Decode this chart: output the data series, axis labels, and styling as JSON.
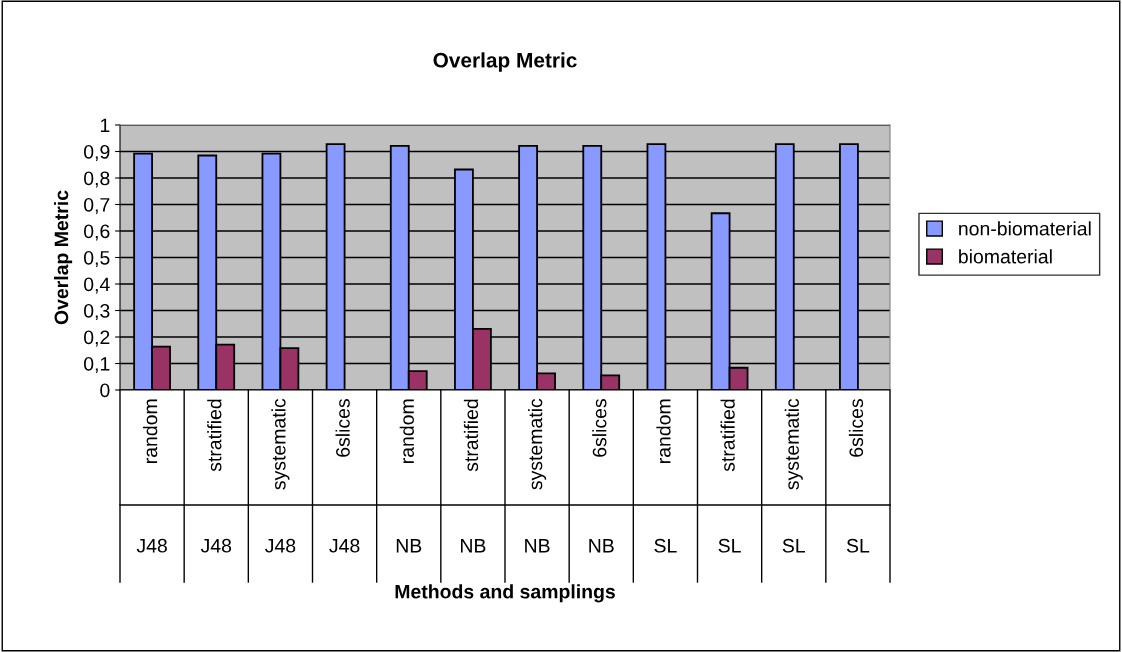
{
  "chart_data": {
    "type": "bar",
    "title": "Overlap Metric",
    "xlabel": "Methods and samplings",
    "ylabel": "Overlap Metric",
    "categories": [
      "random",
      "stratified",
      "systematic",
      "6slices",
      "random",
      "stratified",
      "systematic",
      "6slices",
      "random",
      "stratified",
      "systematic",
      "6slices"
    ],
    "annotations": [
      "J48",
      "J48",
      "J48",
      "J48",
      "NB",
      "NB",
      "NB",
      "NB",
      "SL",
      "SL",
      "SL",
      "SL"
    ],
    "series": [
      {
        "name": "non-biomaterial",
        "color": "#8899ff",
        "values": [
          0.892,
          0.885,
          0.892,
          0.928,
          0.921,
          0.832,
          0.921,
          0.921,
          0.928,
          0.667,
          0.928,
          0.928
        ]
      },
      {
        "name": "biomaterial",
        "color": "#993366",
        "values": [
          0.164,
          0.171,
          0.158,
          null,
          0.071,
          0.231,
          0.063,
          0.055,
          null,
          0.084,
          null,
          null
        ]
      }
    ],
    "ylim": [
      0,
      1
    ],
    "yticks": [
      0,
      {
        "value": 0.1,
        "label": "0,1"
      },
      {
        "value": 0.2,
        "label": "0,2"
      },
      {
        "value": 0.3,
        "label": "0,3"
      },
      {
        "value": 0.4,
        "label": "0,4"
      },
      {
        "value": 0.5,
        "label": "0,5"
      },
      {
        "value": 0.6,
        "label": "0,6"
      },
      {
        "value": 0.7,
        "label": "0,7"
      },
      {
        "value": 0.8,
        "label": "0,8"
      },
      {
        "value": 0.9,
        "label": "0,9"
      },
      1
    ],
    "grid": "y",
    "legend": "right"
  }
}
